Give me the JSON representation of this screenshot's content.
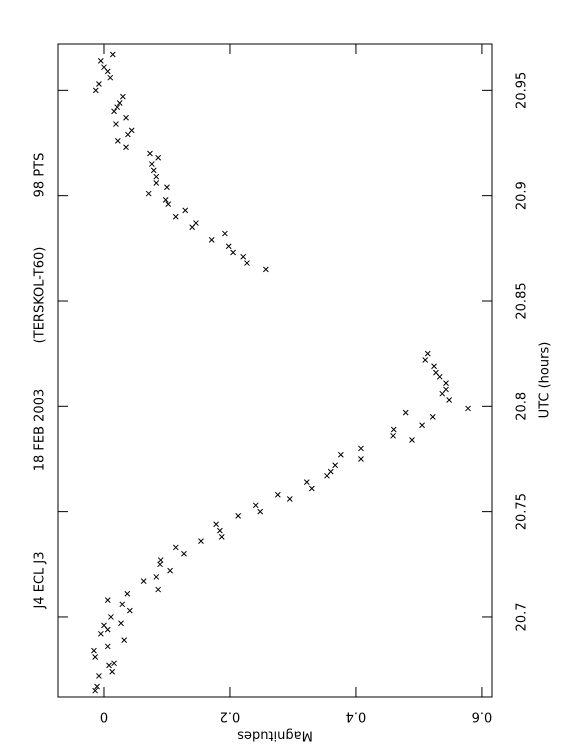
{
  "chart_data": {
    "type": "scatter",
    "title": [
      "J4 ECL J3",
      "18 FEB 2003",
      "(TERSKOL-T60)",
      "98 PTS"
    ],
    "x_label": "UTC (hours)",
    "y_label": "Magnitudes",
    "xlim": [
      20.662,
      20.972
    ],
    "xticks": [
      20.7,
      20.75,
      20.8,
      20.85,
      20.9,
      20.95
    ],
    "ylim": [
      -0.073,
      0.616
    ],
    "yticks": [
      0,
      0.2,
      0.4,
      0.6
    ],
    "y_inverted": true,
    "color": "#000000",
    "x": [
      20.967,
      20.964,
      20.961,
      20.959,
      20.956,
      20.953,
      20.95,
      20.947,
      20.944,
      20.942,
      20.94,
      20.937,
      20.934,
      20.931,
      20.929,
      20.926,
      20.923,
      20.92,
      20.918,
      20.915,
      20.912,
      20.909,
      20.906,
      20.904,
      20.901,
      20.898,
      20.896,
      20.89,
      20.893,
      20.887,
      20.885,
      20.879,
      20.882,
      20.876,
      20.873,
      20.871,
      20.868,
      20.865,
      20.665,
      20.667,
      20.672,
      20.674,
      20.677,
      20.678,
      20.681,
      20.684,
      20.686,
      20.689,
      20.692,
      20.694,
      20.696,
      20.697,
      20.7,
      20.703,
      20.706,
      20.708,
      20.711,
      20.717,
      20.719,
      20.713,
      20.725,
      20.727,
      20.722,
      20.73,
      20.733,
      20.736,
      20.738,
      20.741,
      20.744,
      20.748,
      20.75,
      20.753,
      20.756,
      20.758,
      20.761,
      20.764,
      20.772,
      20.769,
      20.767,
      20.777,
      20.775,
      20.78,
      20.786,
      20.789,
      20.784,
      20.797,
      20.791,
      20.795,
      20.799,
      20.803,
      20.806,
      20.808,
      20.811,
      20.814,
      20.816,
      20.819,
      20.822,
      20.825
    ],
    "y": [
      0.014,
      -0.005,
      0,
      0.006,
      0.01,
      -0.008,
      -0.013,
      0.03,
      0.025,
      0.021,
      0.016,
      0.035,
      0.019,
      0.044,
      0.038,
      0.022,
      0.035,
      0.073,
      0.086,
      0.076,
      0.079,
      0.083,
      0.083,
      0.1,
      0.071,
      0.098,
      0.102,
      0.114,
      0.129,
      0.146,
      0.14,
      0.171,
      0.192,
      0.198,
      0.205,
      0.221,
      0.227,
      0.257,
      -0.014,
      -0.011,
      -0.008,
      0.013,
      0.008,
      0.016,
      -0.014,
      -0.016,
      0.006,
      0.032,
      -0.005,
      0.006,
      0,
      0.027,
      0.011,
      0.041,
      0.029,
      0.006,
      0.037,
      0.063,
      0.083,
      0.086,
      0.089,
      0.09,
      0.105,
      0.127,
      0.114,
      0.154,
      0.187,
      0.184,
      0.178,
      0.213,
      0.248,
      0.241,
      0.295,
      0.276,
      0.33,
      0.322,
      0.367,
      0.36,
      0.354,
      0.376,
      0.408,
      0.408,
      0.459,
      0.46,
      0.489,
      0.479,
      0.505,
      0.522,
      0.578,
      0.548,
      0.537,
      0.543,
      0.543,
      0.533,
      0.527,
      0.524,
      0.51,
      0.514
    ]
  }
}
